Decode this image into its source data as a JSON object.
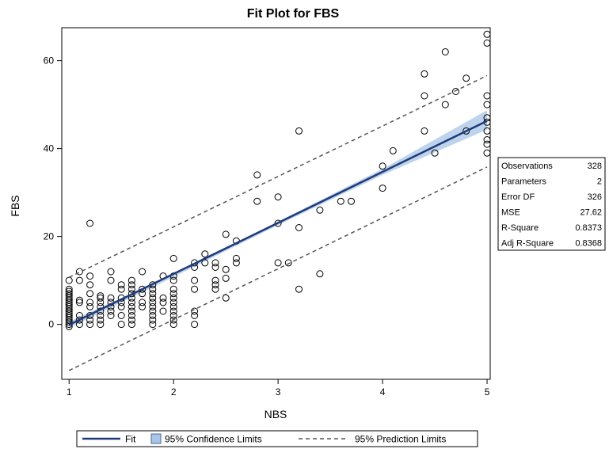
{
  "chart_data": {
    "type": "scatter",
    "title": "Fit Plot for FBS",
    "xlabel": "NBS",
    "ylabel": "FBS",
    "xlim": [
      0.93,
      5.03
    ],
    "ylim": [
      -12.5,
      67.5
    ],
    "x_ticks": [
      1,
      2,
      3,
      4,
      5
    ],
    "y_ticks": [
      0,
      20,
      40,
      60
    ],
    "grid": false,
    "fit": {
      "intercept": -11.7,
      "slope": 11.6
    },
    "confidence_band": [
      {
        "x": 1,
        "lower": -0.8,
        "upper": 0.6
      },
      {
        "x": 2,
        "lower": 10.8,
        "upper": 11.4
      },
      {
        "x": 3,
        "lower": 22.6,
        "upper": 23.4
      },
      {
        "x": 4,
        "lower": 34.0,
        "upper": 35.4
      },
      {
        "x": 5,
        "lower": 44.3,
        "upper": 48.7
      }
    ],
    "prediction_band": [
      {
        "x": 1,
        "lower": -10.5,
        "upper": 10.7
      },
      {
        "x": 5,
        "lower": 35.8,
        "upper": 56.6
      }
    ],
    "points": [
      [
        1,
        10
      ],
      [
        1,
        8
      ],
      [
        1,
        7.5
      ],
      [
        1,
        7
      ],
      [
        1,
        6.5
      ],
      [
        1,
        6
      ],
      [
        1,
        5.5
      ],
      [
        1,
        5
      ],
      [
        1,
        4.5
      ],
      [
        1,
        4
      ],
      [
        1,
        3.5
      ],
      [
        1,
        3
      ],
      [
        1,
        2.5
      ],
      [
        1,
        2
      ],
      [
        1,
        1.5
      ],
      [
        1,
        1
      ],
      [
        1,
        0.5
      ],
      [
        1,
        0
      ],
      [
        1,
        -0.5
      ],
      [
        1.1,
        12
      ],
      [
        1.1,
        10
      ],
      [
        1.1,
        5.5
      ],
      [
        1.1,
        5
      ],
      [
        1.1,
        2
      ],
      [
        1.1,
        1
      ],
      [
        1.1,
        0
      ],
      [
        1.2,
        23
      ],
      [
        1.2,
        11
      ],
      [
        1.2,
        9
      ],
      [
        1.2,
        7
      ],
      [
        1.2,
        5
      ],
      [
        1.2,
        4
      ],
      [
        1.2,
        2
      ],
      [
        1.2,
        1
      ],
      [
        1.2,
        0
      ],
      [
        1.3,
        6.5
      ],
      [
        1.3,
        6
      ],
      [
        1.3,
        5
      ],
      [
        1.3,
        4
      ],
      [
        1.3,
        3
      ],
      [
        1.3,
        2
      ],
      [
        1.3,
        1
      ],
      [
        1.3,
        0
      ],
      [
        1.4,
        12
      ],
      [
        1.4,
        10
      ],
      [
        1.4,
        6
      ],
      [
        1.4,
        5
      ],
      [
        1.4,
        4
      ],
      [
        1.4,
        3
      ],
      [
        1.4,
        2
      ],
      [
        1.5,
        9
      ],
      [
        1.5,
        8
      ],
      [
        1.5,
        6
      ],
      [
        1.5,
        5
      ],
      [
        1.5,
        4
      ],
      [
        1.5,
        2
      ],
      [
        1.5,
        0
      ],
      [
        1.6,
        10
      ],
      [
        1.6,
        9
      ],
      [
        1.6,
        8
      ],
      [
        1.6,
        7
      ],
      [
        1.6,
        6
      ],
      [
        1.6,
        5
      ],
      [
        1.6,
        4
      ],
      [
        1.6,
        3
      ],
      [
        1.6,
        2
      ],
      [
        1.6,
        1
      ],
      [
        1.6,
        0
      ],
      [
        1.7,
        12
      ],
      [
        1.7,
        8
      ],
      [
        1.7,
        7
      ],
      [
        1.7,
        5
      ],
      [
        1.7,
        4
      ],
      [
        1.8,
        9
      ],
      [
        1.8,
        8
      ],
      [
        1.8,
        7
      ],
      [
        1.8,
        6
      ],
      [
        1.8,
        5
      ],
      [
        1.8,
        4
      ],
      [
        1.8,
        3
      ],
      [
        1.8,
        2
      ],
      [
        1.8,
        1
      ],
      [
        1.8,
        0
      ],
      [
        1.9,
        11
      ],
      [
        1.9,
        6
      ],
      [
        1.9,
        5
      ],
      [
        1.9,
        3
      ],
      [
        2,
        15
      ],
      [
        2,
        11
      ],
      [
        2,
        10
      ],
      [
        2,
        8
      ],
      [
        2,
        7
      ],
      [
        2,
        6
      ],
      [
        2,
        5
      ],
      [
        2,
        4
      ],
      [
        2,
        3
      ],
      [
        2,
        2
      ],
      [
        2,
        1
      ],
      [
        2,
        0
      ],
      [
        2.2,
        14
      ],
      [
        2.2,
        13
      ],
      [
        2.2,
        10
      ],
      [
        2.2,
        8
      ],
      [
        2.2,
        3
      ],
      [
        2.2,
        2
      ],
      [
        2.2,
        0
      ],
      [
        2.3,
        16
      ],
      [
        2.3,
        14
      ],
      [
        2.4,
        14
      ],
      [
        2.4,
        13
      ],
      [
        2.4,
        10
      ],
      [
        2.4,
        9
      ],
      [
        2.4,
        8
      ],
      [
        2.5,
        20.5
      ],
      [
        2.5,
        12.5
      ],
      [
        2.5,
        10.5
      ],
      [
        2.5,
        6
      ],
      [
        2.6,
        15
      ],
      [
        2.6,
        14
      ],
      [
        2.6,
        19
      ],
      [
        2.8,
        34
      ],
      [
        2.8,
        28
      ],
      [
        3,
        29
      ],
      [
        3,
        23
      ],
      [
        3,
        14
      ],
      [
        3.1,
        14
      ],
      [
        3.2,
        44
      ],
      [
        3.2,
        22
      ],
      [
        3.2,
        8
      ],
      [
        3.4,
        26
      ],
      [
        3.4,
        11.5
      ],
      [
        3.6,
        28
      ],
      [
        3.7,
        28
      ],
      [
        4,
        36
      ],
      [
        4,
        31
      ],
      [
        4.1,
        39.5
      ],
      [
        4.4,
        57
      ],
      [
        4.4,
        52
      ],
      [
        4.4,
        44
      ],
      [
        4.5,
        39
      ],
      [
        4.6,
        62
      ],
      [
        4.6,
        50
      ],
      [
        4.7,
        53
      ],
      [
        4.8,
        56
      ],
      [
        4.8,
        44
      ],
      [
        5,
        66
      ],
      [
        5,
        64
      ],
      [
        5,
        52
      ],
      [
        5,
        50
      ],
      [
        5,
        47
      ],
      [
        5,
        46
      ],
      [
        5,
        44
      ],
      [
        5,
        42
      ],
      [
        5,
        41
      ],
      [
        5,
        39
      ]
    ],
    "fit_color": "#1f3a7a",
    "band_color": "#a8c4e6",
    "point_color": "#000000",
    "prediction_color": "#555555",
    "stats": [
      {
        "label": "Observations",
        "value": "328"
      },
      {
        "label": "Parameters",
        "value": "2"
      },
      {
        "label": "Error DF",
        "value": "326"
      },
      {
        "label": "MSE",
        "value": "27.62"
      },
      {
        "label": "R-Square",
        "value": "0.8373"
      },
      {
        "label": "Adj R-Square",
        "value": "0.8368"
      }
    ],
    "legend": {
      "placement": "bottom",
      "entries": [
        {
          "kind": "line",
          "label": "Fit"
        },
        {
          "kind": "band",
          "label": "95% Confidence Limits"
        },
        {
          "kind": "dashed",
          "label": "95% Prediction Limits"
        }
      ]
    }
  }
}
